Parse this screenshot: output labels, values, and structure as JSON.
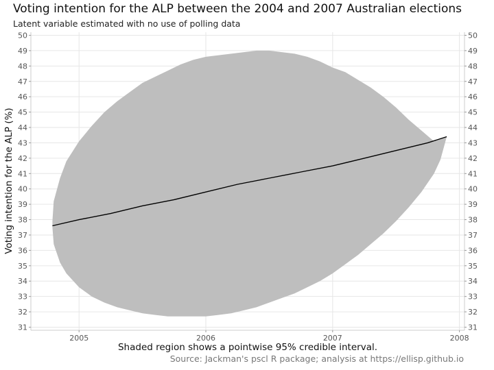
{
  "chart_data": {
    "type": "area",
    "title": "Voting intention for the ALP between the 2004 and 2007 Australian elections",
    "subtitle": "Latent variable estimated with no use of polling data",
    "xlabel": "Shaded region shows a pointwise 95% credible interval.",
    "ylabel": "Voting intention for the ALP (%)",
    "caption": "Source: Jackman's pscl R package; analysis at https://ellisp.github.io",
    "xlim": [
      2004.62,
      2008.04
    ],
    "ylim": [
      30.8,
      50.2
    ],
    "x_ticks": [
      2005,
      2006,
      2007,
      2008
    ],
    "x_tick_labels": [
      "2005",
      "2006",
      "2007",
      "2008"
    ],
    "y_ticks": [
      31,
      32,
      33,
      34,
      35,
      36,
      37,
      38,
      39,
      40,
      41,
      42,
      43,
      44,
      45,
      46,
      47,
      48,
      49,
      50
    ],
    "y_tick_labels": [
      "31",
      "32",
      "33",
      "34",
      "35",
      "36",
      "37",
      "38",
      "39",
      "40",
      "41",
      "42",
      "43",
      "44",
      "45",
      "46",
      "47",
      "48",
      "49",
      "50"
    ],
    "grid": true,
    "legend": "none",
    "series": [
      {
        "type": "line",
        "x": [
          2004.79,
          2005.0,
          2005.25,
          2005.5,
          2005.75,
          2006.0,
          2006.25,
          2006.5,
          2006.75,
          2007.0,
          2007.25,
          2007.5,
          2007.75,
          2007.9
        ],
        "y": [
          37.6,
          38.0,
          38.4,
          38.9,
          39.3,
          39.8,
          40.3,
          40.7,
          41.1,
          41.5,
          42.0,
          42.5,
          43.0,
          43.4
        ],
        "color": "#000000"
      },
      {
        "type": "ribbon",
        "x": [
          2004.79,
          2004.8,
          2004.85,
          2004.9,
          2005.0,
          2005.1,
          2005.2,
          2005.3,
          2005.4,
          2005.5,
          2005.6,
          2005.7,
          2005.8,
          2005.9,
          2006.0,
          2006.1,
          2006.2,
          2006.3,
          2006.4,
          2006.5,
          2006.6,
          2006.7,
          2006.8,
          2006.9,
          2007.0,
          2007.1,
          2007.2,
          2007.3,
          2007.4,
          2007.5,
          2007.6,
          2007.7,
          2007.8,
          2007.85,
          2007.9
        ],
        "lower": [
          37.5,
          36.4,
          35.2,
          34.5,
          33.6,
          33.0,
          32.6,
          32.3,
          32.1,
          31.9,
          31.8,
          31.7,
          31.7,
          31.7,
          31.7,
          31.8,
          31.9,
          32.1,
          32.3,
          32.6,
          32.9,
          33.2,
          33.6,
          34.0,
          34.5,
          35.1,
          35.7,
          36.4,
          37.1,
          37.9,
          38.8,
          39.8,
          41.0,
          41.9,
          43.4
        ],
        "upper": [
          37.9,
          39.2,
          40.7,
          41.8,
          43.1,
          44.1,
          45.0,
          45.7,
          46.3,
          46.9,
          47.3,
          47.7,
          48.1,
          48.4,
          48.6,
          48.7,
          48.8,
          48.9,
          49.0,
          49.0,
          48.9,
          48.8,
          48.6,
          48.3,
          47.9,
          47.6,
          47.1,
          46.6,
          46.0,
          45.3,
          44.5,
          43.8,
          43.1,
          43.3,
          43.4
        ],
        "color": "#bebebe"
      }
    ]
  }
}
